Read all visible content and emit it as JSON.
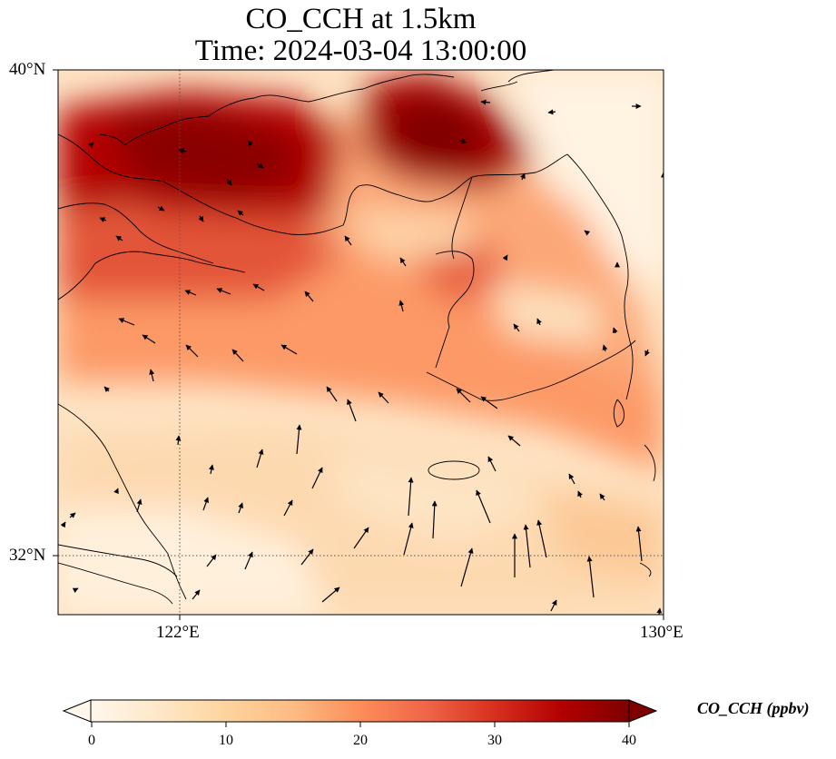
{
  "title": {
    "line1": "CO_CCH at 1.5km",
    "line2": "Time: 2024-03-04 13:00:00"
  },
  "map": {
    "projection": "PlateCarree",
    "lon_range": [
      120,
      130
    ],
    "lat_range": [
      31,
      40
    ],
    "lat_labels": [
      "40°N",
      "32°N"
    ],
    "lon_labels": [
      "122°E",
      "130°E"
    ],
    "gridlines": {
      "lon": [
        122
      ],
      "lat": [
        32
      ],
      "style": "dotted"
    },
    "colormap": "OrRd",
    "field_description": "CO_CCH concentration field",
    "vectors": "wind arrows"
  },
  "colorbar": {
    "label": "CO_CCH (ppbv)",
    "ticks": [
      "0",
      "10",
      "20",
      "30",
      "40"
    ],
    "range": [
      0,
      40
    ],
    "extend": "both",
    "colors": [
      "#fff7ec",
      "#fee8c8",
      "#fdd49e",
      "#fdbb84",
      "#fc8d59",
      "#ef6548",
      "#d7301f",
      "#b30000",
      "#7f0000"
    ]
  }
}
